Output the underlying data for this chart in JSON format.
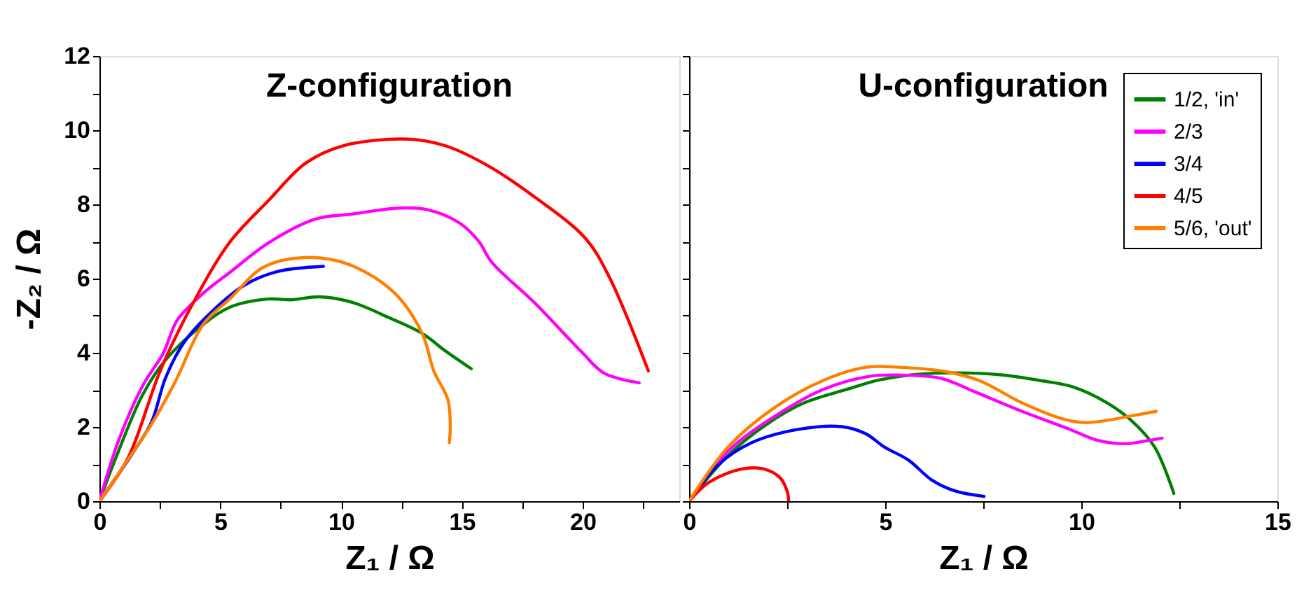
{
  "chart_data": [
    {
      "type": "line",
      "title": "Z-configuration",
      "xlabel": "Z₁ / Ω",
      "ylabel": "-Z₂ / Ω",
      "xlim": [
        0,
        24
      ],
      "ylim": [
        0,
        12
      ],
      "xticks": [
        0,
        {
          "value": 2.5,
          "label": null
        },
        5,
        {
          "value": 7.5,
          "label": null
        },
        10,
        {
          "value": 12.5,
          "label": null
        },
        15,
        {
          "value": 17.5,
          "label": null
        },
        20,
        {
          "value": 22.5,
          "label": null
        }
      ],
      "yticks": [
        0,
        {
          "value": 1,
          "label": null
        },
        2,
        {
          "value": 3,
          "label": null
        },
        4,
        {
          "value": 5,
          "label": null
        },
        6,
        {
          "value": 7,
          "label": null
        },
        8,
        {
          "value": 9,
          "label": null
        },
        10,
        {
          "value": 11,
          "label": null
        },
        12
      ],
      "grid": false,
      "legend": false,
      "series": [
        {
          "color": "#008000",
          "x": [
            0,
            0.62,
            1.78,
            2.74,
            4.29,
            5.44,
            6.99,
            7.95,
            9.11,
            10.46,
            12.01,
            13.36,
            14.32,
            15.39
          ],
          "values": [
            0,
            1.07,
            2.86,
            3.81,
            4.76,
            5.24,
            5.45,
            5.43,
            5.51,
            5.36,
            4.94,
            4.52,
            4.05,
            3.57
          ]
        },
        {
          "color": "#ff00ff",
          "x": [
            0,
            0.81,
            1.78,
            2.64,
            3.22,
            4.29,
            5.44,
            6.99,
            8.92,
            10.46,
            12.39,
            13.55,
            14.9,
            15.68,
            16.25,
            17.99,
            19.92,
            20.89,
            22.34
          ],
          "values": [
            0,
            1.67,
            3.1,
            3.99,
            4.88,
            5.6,
            6.19,
            6.96,
            7.6,
            7.74,
            7.9,
            7.86,
            7.5,
            7.02,
            6.43,
            5.36,
            4.05,
            3.45,
            3.19
          ]
        },
        {
          "color": "#0000ff",
          "x": [
            0,
            1.39,
            2.16,
            2.74,
            3.51,
            4.67,
            6.02,
            7.37,
            9.27
          ],
          "values": [
            0,
            1.31,
            2.14,
            3.33,
            4.29,
            5.12,
            5.83,
            6.19,
            6.33
          ]
        },
        {
          "color": "#ff0000",
          "x": [
            0,
            1.2,
            2.55,
            4.09,
            5.44,
            6.99,
            8.53,
            10.08,
            12.78,
            14.32,
            16.06,
            17.99,
            20.12,
            21.08,
            22.72
          ],
          "values": [
            0,
            1.19,
            3.57,
            5.6,
            7.02,
            8.1,
            9.11,
            9.58,
            9.76,
            9.58,
            9.05,
            8.21,
            7.08,
            6.07,
            3.51
          ]
        },
        {
          "color": "#ff8000",
          "x": [
            0,
            1.0,
            2.16,
            3.13,
            4.29,
            5.44,
            6.8,
            8.63,
            10.37,
            12.2,
            13.36,
            13.84,
            14.42,
            14.52,
            14.48
          ],
          "values": [
            0,
            0.95,
            2.08,
            3.21,
            4.76,
            5.48,
            6.31,
            6.57,
            6.37,
            5.62,
            4.52,
            3.51,
            2.74,
            2.02,
            1.58
          ]
        }
      ]
    },
    {
      "type": "line",
      "title": "U-configuration",
      "xlabel": "Z₁ / Ω",
      "xlim": [
        0,
        15
      ],
      "ylim": [
        0,
        12
      ],
      "xticks": [
        0,
        {
          "value": 2.5,
          "label": null
        },
        5,
        {
          "value": 7.5,
          "label": null
        },
        10,
        {
          "value": 12.5,
          "label": null
        },
        15
      ],
      "yticks": [
        0,
        {
          "value": 1,
          "label": null
        },
        2,
        {
          "value": 3,
          "label": null
        },
        4,
        {
          "value": 5,
          "label": null
        },
        6,
        {
          "value": 7,
          "label": null
        },
        8,
        {
          "value": 9,
          "label": null
        },
        10,
        {
          "value": 11,
          "label": null
        },
        12
      ],
      "tick_labels": "x",
      "grid": false,
      "legend": "top right",
      "series": [
        {
          "name": "1/2, 'in'",
          "color": "#008000",
          "x": [
            0,
            0.99,
            1.96,
            2.93,
            4.01,
            4.86,
            5.83,
            6.8,
            8.0,
            8.97,
            9.82,
            10.66,
            11.27,
            11.87,
            12.36
          ],
          "values": [
            0,
            1.23,
            2.06,
            2.65,
            3.01,
            3.27,
            3.42,
            3.46,
            3.4,
            3.25,
            3.07,
            2.65,
            2.18,
            1.46,
            0.21
          ]
        },
        {
          "name": "2/3",
          "color": "#ff00ff",
          "x": [
            0,
            0.99,
            2.2,
            3.41,
            4.62,
            5.34,
            6.43,
            7.28,
            8.49,
            9.7,
            10.42,
            11.15,
            11.57,
            12.06
          ],
          "values": [
            0,
            1.35,
            2.3,
            3.01,
            3.37,
            3.4,
            3.31,
            2.95,
            2.42,
            1.94,
            1.64,
            1.55,
            1.61,
            1.7
          ]
        },
        {
          "name": "3/4",
          "color": "#0000ff",
          "x": [
            0,
            0.75,
            1.6,
            2.81,
            3.89,
            4.5,
            4.98,
            5.59,
            6.19,
            6.8,
            7.52
          ],
          "values": [
            0,
            0.99,
            1.58,
            1.94,
            2.01,
            1.82,
            1.46,
            1.11,
            0.57,
            0.27,
            0.13
          ]
        },
        {
          "name": "4/5",
          "color": "#ff0000",
          "x": [
            0,
            0.51,
            1.35,
            1.9,
            2.32,
            2.5,
            2.54
          ],
          "values": [
            0,
            0.51,
            0.87,
            0.87,
            0.63,
            0.27,
            0.0
          ]
        },
        {
          "name": "5/6, 'out'",
          "color": "#ff8000",
          "x": [
            0,
            0.99,
            2.2,
            3.41,
            4.5,
            5.34,
            6.55,
            7.4,
            8.49,
            9.46,
            10.06,
            10.66,
            11.27,
            11.91
          ],
          "values": [
            0,
            1.46,
            2.54,
            3.25,
            3.61,
            3.61,
            3.49,
            3.25,
            2.65,
            2.24,
            2.12,
            2.18,
            2.3,
            2.42
          ]
        }
      ]
    }
  ]
}
